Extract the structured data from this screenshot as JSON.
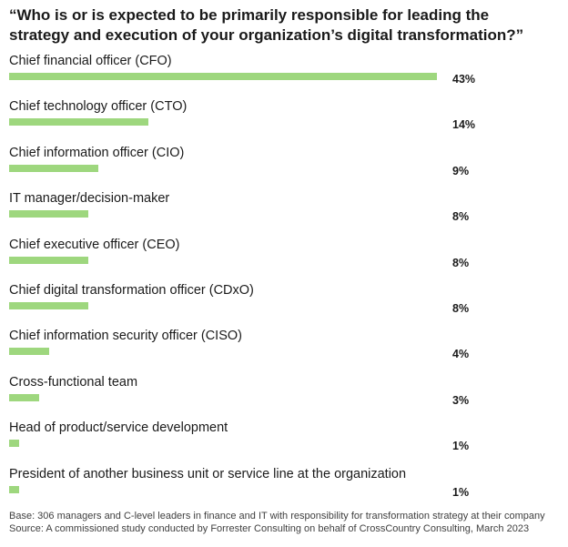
{
  "title": {
    "line1": "“Who is or is expected to be primarily responsible for leading the",
    "line2": "strategy and execution of your organization’s digital transformation?”"
  },
  "colors": {
    "bar": "#9ed77e"
  },
  "chart_data": {
    "type": "bar",
    "orientation": "horizontal",
    "categories": [
      "Chief financial officer (CFO)",
      "Chief technology officer (CTO)",
      "Chief information officer (CIO)",
      "IT manager/decision-maker",
      "Chief executive officer (CEO)",
      "Chief digital transformation officer (CDxO)",
      "Chief information security officer (CISO)",
      "Cross-functional team",
      "Head of product/service development",
      "President of another business unit or service line at the organization"
    ],
    "values": [
      43,
      14,
      9,
      8,
      8,
      8,
      4,
      3,
      1,
      1
    ],
    "value_labels": [
      "43%",
      "14%",
      "9%",
      "8%",
      "8%",
      "8%",
      "4%",
      "3%",
      "1%",
      "1%"
    ],
    "xlim": [
      0,
      43
    ]
  },
  "footer": {
    "base": "Base: 306 managers and C-level leaders in finance and IT with responsibility for transformation strategy at their company",
    "source": "Source: A commissioned study conducted by Forrester Consulting on behalf of CrossCountry Consulting, March 2023"
  }
}
